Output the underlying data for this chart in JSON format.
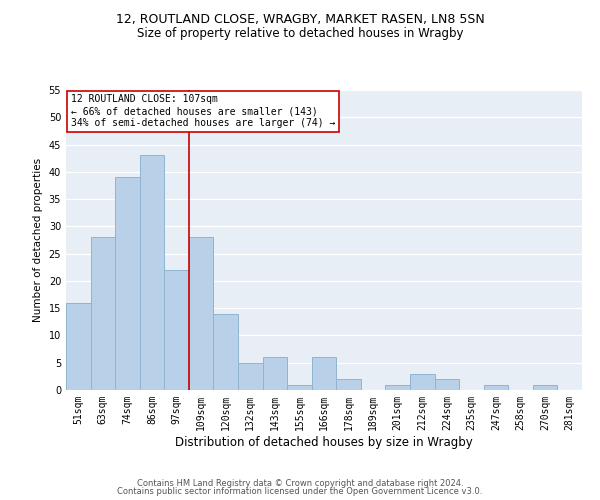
{
  "title1": "12, ROUTLAND CLOSE, WRAGBY, MARKET RASEN, LN8 5SN",
  "title2": "Size of property relative to detached houses in Wragby",
  "xlabel": "Distribution of detached houses by size in Wragby",
  "ylabel": "Number of detached properties",
  "categories": [
    "51sqm",
    "63sqm",
    "74sqm",
    "86sqm",
    "97sqm",
    "109sqm",
    "120sqm",
    "132sqm",
    "143sqm",
    "155sqm",
    "166sqm",
    "178sqm",
    "189sqm",
    "201sqm",
    "212sqm",
    "224sqm",
    "235sqm",
    "247sqm",
    "258sqm",
    "270sqm",
    "281sqm"
  ],
  "values": [
    16,
    28,
    39,
    43,
    22,
    28,
    14,
    5,
    6,
    1,
    6,
    2,
    0,
    1,
    3,
    2,
    0,
    1,
    0,
    1,
    0
  ],
  "bar_color": "#b8d0e8",
  "bar_edge_color": "#90b4d0",
  "vline_color": "#cc0000",
  "annotation_line1": "12 ROUTLAND CLOSE: 107sqm",
  "annotation_line2": "← 66% of detached houses are smaller (143)",
  "annotation_line3": "34% of semi-detached houses are larger (74) →",
  "annotation_box_color": "white",
  "annotation_box_edge": "#cc0000",
  "ylim": [
    0,
    55
  ],
  "yticks": [
    0,
    5,
    10,
    15,
    20,
    25,
    30,
    35,
    40,
    45,
    50,
    55
  ],
  "bg_color": "#e8eef5",
  "grid_color": "#ffffff",
  "footer1": "Contains HM Land Registry data © Crown copyright and database right 2024.",
  "footer2": "Contains public sector information licensed under the Open Government Licence v3.0.",
  "title1_fontsize": 9,
  "title2_fontsize": 8.5,
  "xlabel_fontsize": 8.5,
  "ylabel_fontsize": 7.5,
  "tick_fontsize": 7,
  "annotation_fontsize": 7,
  "footer_fontsize": 6
}
